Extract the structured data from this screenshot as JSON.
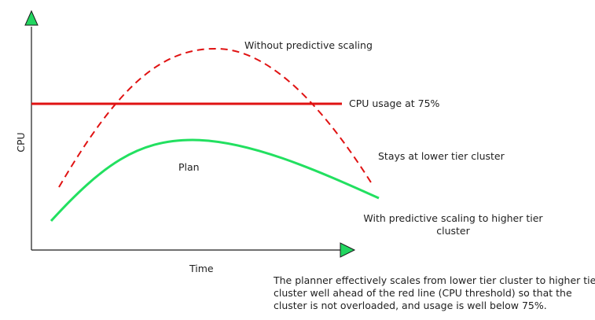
{
  "diagram": {
    "axis_x_label": "Time",
    "axis_y_label": "CPU",
    "threshold_label": "CPU usage at 75%",
    "without_label": "Without predictive scaling",
    "plan_label": "Plan",
    "stays_label": "Stays at lower tier cluster",
    "with_label": "With predictive scaling to higher tier cluster",
    "caption": "The planner effectively scales from lower tier cluster to higher tier cluster well ahead of the red line (CPU threshold) so that the cluster is not overloaded, and usage is well below 75%."
  },
  "colors": {
    "axis": "#1a1a1a",
    "arrowhead_fill": "#22d660",
    "threshold_line": "#e01212",
    "without_curve": "#e01212",
    "plan_curve": "#22e060",
    "text": "#1f1f1f"
  }
}
